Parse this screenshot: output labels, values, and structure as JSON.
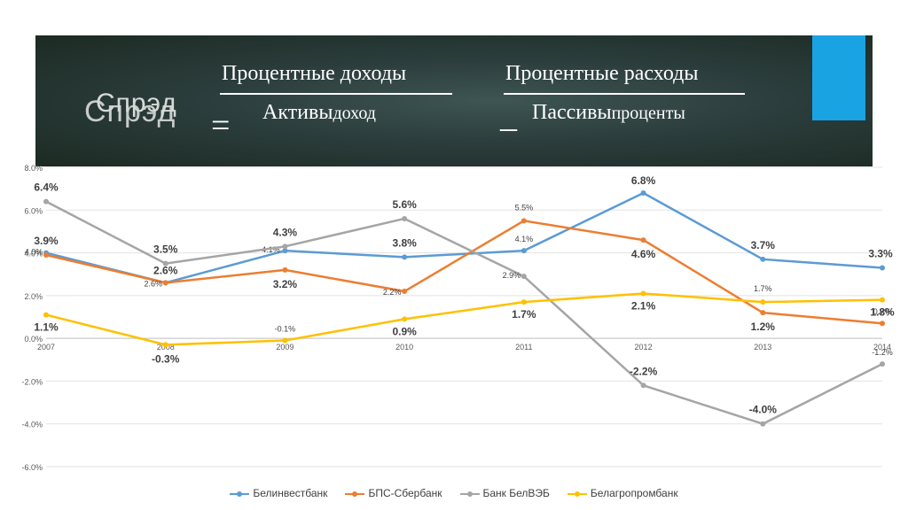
{
  "banner": {
    "title_main": "Спрэд",
    "title_shadow": "Спрэд",
    "equals": "=",
    "minus": "–",
    "frac1_num": "Процентные доходы",
    "frac1_den": "Активы",
    "frac1_den_sub": "доход",
    "frac2_num": "Процентные расходы",
    "frac2_den": "Пассивы",
    "frac2_den_sub": "проценты",
    "accent_color": "#1aa3e3"
  },
  "chart_data": {
    "type": "line",
    "categories": [
      "2007",
      "2008",
      "2009",
      "2010",
      "2011",
      "2012",
      "2013",
      "2014"
    ],
    "y_ticks": [
      "8.0%",
      "6.0%",
      "4.0%",
      "2.0%",
      "0.0%",
      "-2.0%",
      "-4.0%",
      "-6.0%"
    ],
    "ylim": [
      -6,
      8
    ],
    "grid": true,
    "legend_position": "bottom",
    "series": [
      {
        "name": "Белинвестбанк",
        "color": "#5b9bd5",
        "values": [
          4.0,
          2.6,
          4.1,
          3.8,
          4.1,
          6.8,
          3.7,
          3.3
        ],
        "labels": [
          "4.0%",
          "2.6%",
          "4.1%",
          "3.8%",
          "4.1%",
          "6.8%",
          "3.7%",
          "3.3%"
        ]
      },
      {
        "name": "БПС-Сбербанк",
        "color": "#ed7d31",
        "values": [
          3.9,
          2.6,
          3.2,
          2.2,
          5.5,
          4.6,
          1.2,
          0.7
        ],
        "labels": [
          "3.9%",
          "2.6%",
          "3.2%",
          "2.2%",
          "5.5%",
          "4.6%",
          "1.2%",
          "0.7%"
        ]
      },
      {
        "name": "Банк БелВЭБ",
        "color": "#a5a5a5",
        "values": [
          6.4,
          3.5,
          4.3,
          5.6,
          2.9,
          -2.2,
          -4.0,
          -1.2
        ],
        "labels": [
          "6.4%",
          "3.5%",
          "4.3%",
          "5.6%",
          "2.9%",
          "-2.2%",
          "-4.0%",
          "-1.2%"
        ]
      },
      {
        "name": "Белагропромбанк",
        "color": "#ffc000",
        "values": [
          1.1,
          -0.3,
          -0.1,
          0.9,
          1.7,
          2.1,
          1.7,
          1.8
        ],
        "labels": [
          "1.1%",
          "-0.3%",
          "-0.1%",
          "0.9%",
          "1.7%",
          "2.1%",
          "1.7%",
          "1.8%"
        ]
      }
    ]
  }
}
